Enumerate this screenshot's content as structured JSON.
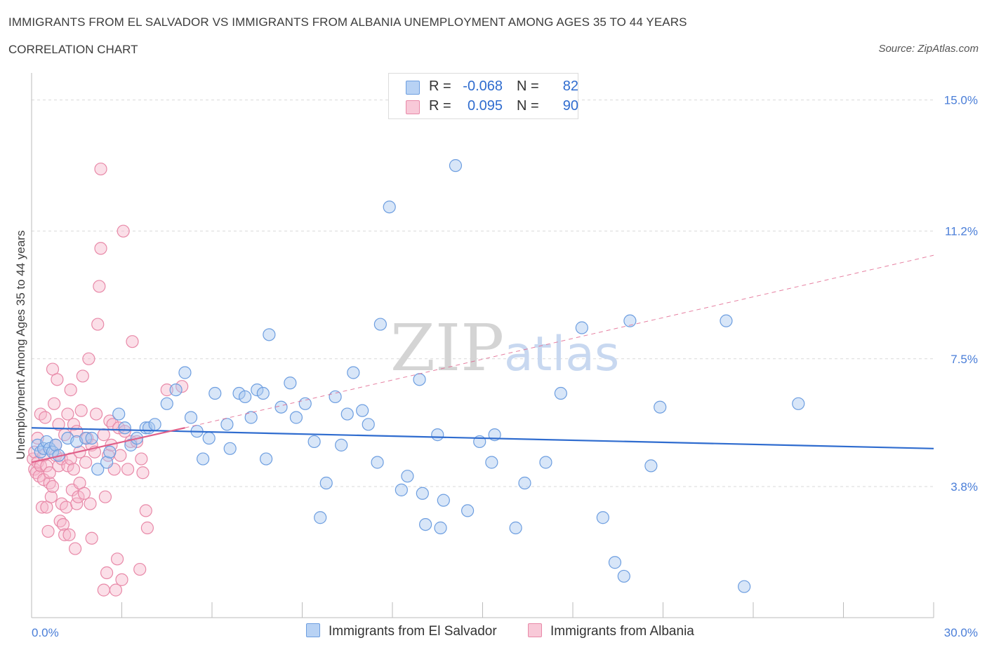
{
  "title": "IMMIGRANTS FROM EL SALVADOR VS IMMIGRANTS FROM ALBANIA UNEMPLOYMENT AMONG AGES 35 TO 44 YEARS",
  "subtitle": "CORRELATION CHART",
  "source": "Source: ZipAtlas.com",
  "watermark": {
    "zip": "ZIP",
    "atlas": "atlas"
  },
  "legend": {
    "series": [
      {
        "r_label": "R =",
        "r_value": "-0.068",
        "n_label": "N =",
        "n_value": "82"
      },
      {
        "r_label": "R =",
        "r_value": "0.095",
        "n_label": "N =",
        "n_value": "90"
      }
    ]
  },
  "colors": {
    "blue_fill": "#a9c8f0",
    "blue_stroke": "#6d9ee0",
    "blue_line": "#2f6ccf",
    "pink_fill": "#f6b8cc",
    "pink_stroke": "#e889a8",
    "pink_line": "#e0608a",
    "grid": "#d9d9d9",
    "axis": "#bbbbbb"
  },
  "chart_data": {
    "type": "scatter",
    "title": "IMMIGRANTS FROM EL SALVADOR VS IMMIGRANTS FROM ALBANIA UNEMPLOYMENT AMONG AGES 35 TO 44 YEARS",
    "xlabel": "",
    "ylabel": "Unemployment Among Ages 35 to 44 years",
    "xlim": [
      0,
      30
    ],
    "ylim": [
      0,
      15.5
    ],
    "x_tick_labels": [
      "0.0%",
      "30.0%"
    ],
    "y_ticks": [
      3.8,
      7.5,
      11.2,
      15.0
    ],
    "y_tick_labels": [
      "3.8%",
      "7.5%",
      "11.2%",
      "15.0%"
    ],
    "grid": true,
    "series": [
      {
        "name": "Immigrants from El Salvador",
        "color": "blue",
        "trend": {
          "x": [
            0,
            30
          ],
          "y": [
            5.5,
            4.9
          ],
          "dashed_extension": null
        },
        "points": [
          [
            0.2,
            5.0
          ],
          [
            0.3,
            4.8
          ],
          [
            0.4,
            4.9
          ],
          [
            0.5,
            5.1
          ],
          [
            0.6,
            4.9
          ],
          [
            0.7,
            4.8
          ],
          [
            0.8,
            5.0
          ],
          [
            0.9,
            4.7
          ],
          [
            1.2,
            5.2
          ],
          [
            1.5,
            5.1
          ],
          [
            1.8,
            5.2
          ],
          [
            2.0,
            5.2
          ],
          [
            2.2,
            4.3
          ],
          [
            2.5,
            4.5
          ],
          [
            2.6,
            4.8
          ],
          [
            2.9,
            5.9
          ],
          [
            3.1,
            5.5
          ],
          [
            3.3,
            5.0
          ],
          [
            3.5,
            5.2
          ],
          [
            3.8,
            5.5
          ],
          [
            3.9,
            5.5
          ],
          [
            4.1,
            5.6
          ],
          [
            4.5,
            6.2
          ],
          [
            4.8,
            6.6
          ],
          [
            5.1,
            7.1
          ],
          [
            5.3,
            5.8
          ],
          [
            5.5,
            5.4
          ],
          [
            5.7,
            4.6
          ],
          [
            5.9,
            5.2
          ],
          [
            6.1,
            6.5
          ],
          [
            6.5,
            5.6
          ],
          [
            6.6,
            4.9
          ],
          [
            6.9,
            6.5
          ],
          [
            7.1,
            6.4
          ],
          [
            7.3,
            5.8
          ],
          [
            7.5,
            6.6
          ],
          [
            7.7,
            6.5
          ],
          [
            7.8,
            4.6
          ],
          [
            7.9,
            8.2
          ],
          [
            8.3,
            6.1
          ],
          [
            8.6,
            6.8
          ],
          [
            8.8,
            5.8
          ],
          [
            9.1,
            6.2
          ],
          [
            9.4,
            5.1
          ],
          [
            9.6,
            2.9
          ],
          [
            9.8,
            3.9
          ],
          [
            10.1,
            6.4
          ],
          [
            10.3,
            5.0
          ],
          [
            10.5,
            5.9
          ],
          [
            10.7,
            7.1
          ],
          [
            11.0,
            6.0
          ],
          [
            11.2,
            5.6
          ],
          [
            11.5,
            4.5
          ],
          [
            11.6,
            8.5
          ],
          [
            11.9,
            11.9
          ],
          [
            12.3,
            3.7
          ],
          [
            12.5,
            4.1
          ],
          [
            12.9,
            6.9
          ],
          [
            13.0,
            3.6
          ],
          [
            13.1,
            2.7
          ],
          [
            13.5,
            5.3
          ],
          [
            13.6,
            2.6
          ],
          [
            13.7,
            3.4
          ],
          [
            14.1,
            13.1
          ],
          [
            14.5,
            3.1
          ],
          [
            14.9,
            5.1
          ],
          [
            15.3,
            4.5
          ],
          [
            15.4,
            5.3
          ],
          [
            16.1,
            2.6
          ],
          [
            16.4,
            3.9
          ],
          [
            17.1,
            4.5
          ],
          [
            17.6,
            6.5
          ],
          [
            18.3,
            8.4
          ],
          [
            19.0,
            2.9
          ],
          [
            19.4,
            1.6
          ],
          [
            19.7,
            1.2
          ],
          [
            19.9,
            8.6
          ],
          [
            20.6,
            4.4
          ],
          [
            20.9,
            6.1
          ],
          [
            23.1,
            8.6
          ],
          [
            23.7,
            0.9
          ],
          [
            25.5,
            6.2
          ]
        ]
      },
      {
        "name": "Immigrants from Albania",
        "color": "pink",
        "trend": {
          "x": [
            0,
            5.1
          ],
          "y": [
            4.5,
            5.5
          ],
          "dashed_extension": {
            "x": [
              5.1,
              30
            ],
            "y": [
              5.5,
              10.5
            ]
          }
        },
        "points": [
          [
            0.05,
            4.6
          ],
          [
            0.1,
            4.3
          ],
          [
            0.1,
            4.8
          ],
          [
            0.15,
            4.2
          ],
          [
            0.2,
            5.2
          ],
          [
            0.2,
            4.5
          ],
          [
            0.25,
            4.1
          ],
          [
            0.3,
            5.9
          ],
          [
            0.3,
            4.4
          ],
          [
            0.35,
            3.2
          ],
          [
            0.4,
            4.7
          ],
          [
            0.4,
            4.0
          ],
          [
            0.45,
            5.8
          ],
          [
            0.5,
            3.2
          ],
          [
            0.5,
            4.4
          ],
          [
            0.55,
            2.5
          ],
          [
            0.6,
            3.9
          ],
          [
            0.6,
            4.2
          ],
          [
            0.65,
            3.5
          ],
          [
            0.7,
            3.8
          ],
          [
            0.7,
            7.2
          ],
          [
            0.75,
            6.2
          ],
          [
            0.8,
            5.0
          ],
          [
            0.8,
            4.7
          ],
          [
            0.85,
            6.9
          ],
          [
            0.9,
            5.6
          ],
          [
            0.9,
            4.4
          ],
          [
            0.95,
            2.8
          ],
          [
            1.0,
            3.3
          ],
          [
            1.0,
            4.6
          ],
          [
            1.05,
            2.7
          ],
          [
            1.1,
            2.4
          ],
          [
            1.1,
            5.3
          ],
          [
            1.15,
            3.2
          ],
          [
            1.2,
            5.9
          ],
          [
            1.2,
            4.4
          ],
          [
            1.25,
            2.4
          ],
          [
            1.3,
            4.6
          ],
          [
            1.3,
            6.6
          ],
          [
            1.35,
            3.7
          ],
          [
            1.4,
            5.6
          ],
          [
            1.4,
            4.3
          ],
          [
            1.45,
            2.0
          ],
          [
            1.5,
            3.3
          ],
          [
            1.5,
            5.4
          ],
          [
            1.55,
            3.5
          ],
          [
            1.6,
            3.9
          ],
          [
            1.6,
            4.8
          ],
          [
            1.65,
            6.0
          ],
          [
            1.7,
            7.0
          ],
          [
            1.75,
            3.6
          ],
          [
            1.8,
            4.5
          ],
          [
            1.85,
            5.2
          ],
          [
            1.9,
            7.5
          ],
          [
            1.95,
            3.3
          ],
          [
            2.0,
            5.0
          ],
          [
            2.0,
            2.3
          ],
          [
            2.1,
            4.8
          ],
          [
            2.15,
            5.9
          ],
          [
            2.2,
            8.5
          ],
          [
            2.25,
            9.6
          ],
          [
            2.3,
            10.7
          ],
          [
            2.3,
            13.0
          ],
          [
            2.4,
            5.3
          ],
          [
            2.4,
            0.8
          ],
          [
            2.45,
            3.5
          ],
          [
            2.5,
            1.3
          ],
          [
            2.55,
            4.7
          ],
          [
            2.6,
            5.7
          ],
          [
            2.65,
            5.0
          ],
          [
            2.7,
            5.6
          ],
          [
            2.75,
            4.3
          ],
          [
            2.8,
            0.8
          ],
          [
            2.85,
            1.7
          ],
          [
            2.9,
            5.5
          ],
          [
            2.95,
            4.7
          ],
          [
            3.0,
            1.1
          ],
          [
            3.05,
            11.2
          ],
          [
            3.1,
            5.4
          ],
          [
            3.2,
            4.3
          ],
          [
            3.3,
            5.1
          ],
          [
            3.35,
            8.0
          ],
          [
            3.5,
            5.1
          ],
          [
            3.6,
            1.4
          ],
          [
            3.65,
            4.6
          ],
          [
            3.7,
            4.2
          ],
          [
            3.8,
            3.1
          ],
          [
            3.85,
            2.6
          ],
          [
            4.5,
            6.6
          ],
          [
            5.0,
            6.7
          ]
        ]
      }
    ]
  },
  "bottom_legend": {
    "items": [
      {
        "label": "Immigrants from El Salvador"
      },
      {
        "label": "Immigrants from Albania"
      }
    ]
  }
}
